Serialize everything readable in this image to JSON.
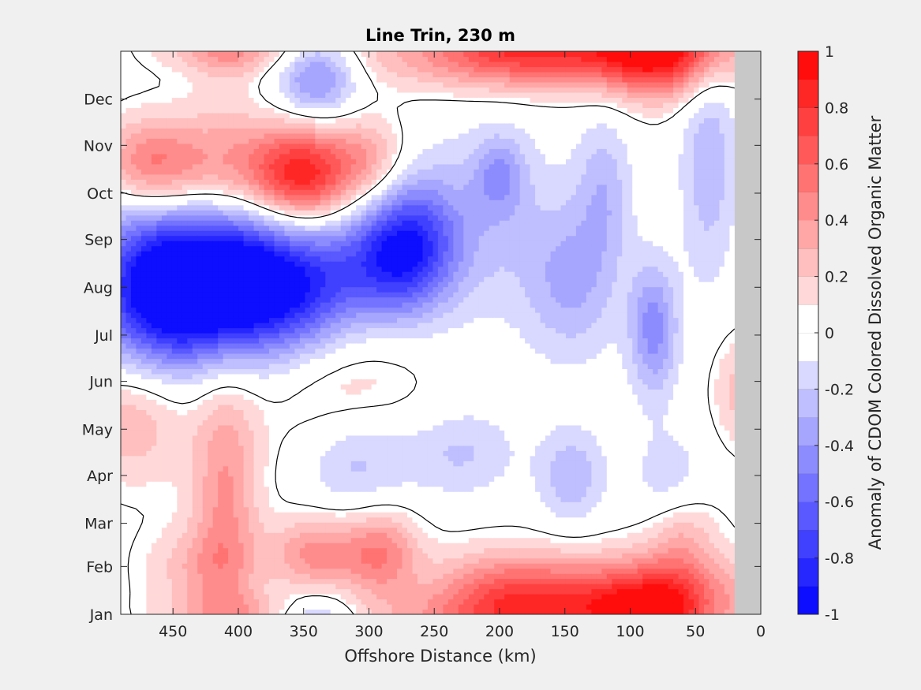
{
  "chart_data": {
    "type": "heatmap",
    "title": "Line Trin, 230 m",
    "xlabel": "Offshore Distance (km)",
    "ylabel": "",
    "colorbar_label": "Anomaly of CDOM Colored Dissolved Organic Matter",
    "xlim": [
      490,
      0
    ],
    "x_reversed": true,
    "x_ticks": [
      450,
      400,
      350,
      300,
      250,
      200,
      150,
      100,
      50,
      0
    ],
    "y_ticks": [
      "Jan",
      "Feb",
      "Mar",
      "Apr",
      "May",
      "Jun",
      "Jul",
      "Aug",
      "Sep",
      "Oct",
      "Nov",
      "Dec"
    ],
    "y_ticks_day": [
      0,
      31,
      59,
      90,
      120,
      151,
      181,
      212,
      243,
      273,
      304,
      334
    ],
    "ylim_day": [
      0,
      365
    ],
    "no_data_x_range": [
      20,
      0
    ],
    "clim": [
      -1,
      1
    ],
    "colorbar_ticks": [
      -1,
      -0.8,
      -0.6,
      -0.4,
      -0.2,
      0,
      0.2,
      0.4,
      0.6,
      0.8,
      1
    ],
    "contour_levels": 20,
    "zero_contour": true,
    "colormap": {
      "negative": "#0000ff",
      "zero": "#ffffff",
      "positive": "#ff0000"
    },
    "no_data_color": "#c8c8c8",
    "features": [
      {
        "x": 470,
        "day": 212,
        "value": -0.6,
        "sx": 40,
        "sd": 45
      },
      {
        "x": 440,
        "day": 212,
        "value": -0.85,
        "sx": 32,
        "sd": 30
      },
      {
        "x": 400,
        "day": 218,
        "value": -0.45,
        "sx": 25,
        "sd": 35
      },
      {
        "x": 360,
        "day": 212,
        "value": -0.9,
        "sx": 35,
        "sd": 30
      },
      {
        "x": 285,
        "day": 228,
        "value": -0.6,
        "sx": 30,
        "sd": 28
      },
      {
        "x": 265,
        "day": 245,
        "value": -0.45,
        "sx": 25,
        "sd": 28
      },
      {
        "x": 210,
        "day": 255,
        "value": -0.2,
        "sx": 40,
        "sd": 45
      },
      {
        "x": 145,
        "day": 215,
        "value": -0.3,
        "sx": 25,
        "sd": 35
      },
      {
        "x": 120,
        "day": 275,
        "value": -0.25,
        "sx": 15,
        "sd": 35
      },
      {
        "x": 82,
        "day": 185,
        "value": -0.45,
        "sx": 13,
        "sd": 30
      },
      {
        "x": 40,
        "day": 295,
        "value": -0.28,
        "sx": 15,
        "sd": 55
      },
      {
        "x": 200,
        "day": 285,
        "value": -0.3,
        "sx": 14,
        "sd": 18
      },
      {
        "x": 340,
        "day": 350,
        "value": -0.5,
        "sx": 22,
        "sd": 20
      },
      {
        "x": 310,
        "day": 100,
        "value": -0.3,
        "sx": 30,
        "sd": 25
      },
      {
        "x": 230,
        "day": 105,
        "value": -0.22,
        "sx": 30,
        "sd": 20
      },
      {
        "x": 145,
        "day": 90,
        "value": -0.28,
        "sx": 18,
        "sd": 22
      },
      {
        "x": 70,
        "day": 85,
        "value": -0.18,
        "sx": 20,
        "sd": 25
      },
      {
        "x": 350,
        "day": 285,
        "value": 0.8,
        "sx": 28,
        "sd": 22
      },
      {
        "x": 420,
        "day": 290,
        "value": 0.4,
        "sx": 45,
        "sd": 25
      },
      {
        "x": 470,
        "day": 292,
        "value": 0.4,
        "sx": 25,
        "sd": 20
      },
      {
        "x": 300,
        "day": 295,
        "value": 0.3,
        "sx": 20,
        "sd": 20
      },
      {
        "x": 80,
        "day": 360,
        "value": 0.45,
        "sx": 30,
        "sd": 20
      },
      {
        "x": 200,
        "day": 360,
        "value": 0.35,
        "sx": 80,
        "sd": 15
      },
      {
        "x": 400,
        "day": 365,
        "value": 0.25,
        "sx": 40,
        "sd": 10
      },
      {
        "x": 130,
        "day": 10,
        "value": 0.45,
        "sx": 55,
        "sd": 20
      },
      {
        "x": 60,
        "day": 10,
        "value": 0.4,
        "sx": 45,
        "sd": 20
      },
      {
        "x": 200,
        "day": 15,
        "value": 0.4,
        "sx": 40,
        "sd": 20
      },
      {
        "x": 340,
        "day": 38,
        "value": 0.45,
        "sx": 25,
        "sd": 18
      },
      {
        "x": 290,
        "day": 40,
        "value": 0.45,
        "sx": 20,
        "sd": 20
      },
      {
        "x": 410,
        "day": 80,
        "value": 0.4,
        "sx": 18,
        "sd": 60
      },
      {
        "x": 480,
        "day": 130,
        "value": 0.35,
        "sx": 30,
        "sd": 30
      },
      {
        "x": 430,
        "day": 30,
        "value": 0.25,
        "sx": 30,
        "sd": 20
      },
      {
        "x": 15,
        "day": 145,
        "value": 0.25,
        "sx": 15,
        "sd": 25
      },
      {
        "x": 320,
        "day": 145,
        "value": 0.2,
        "sx": 45,
        "sd": 40
      },
      {
        "x": 60,
        "day": 50,
        "value": 0.3,
        "sx": 20,
        "sd": 20
      }
    ]
  }
}
